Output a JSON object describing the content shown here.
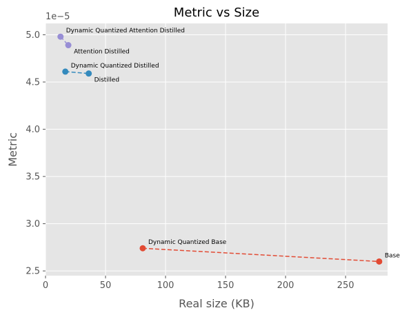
{
  "chart_data": {
    "type": "scatter",
    "title": "Metric vs Size",
    "xlabel": "Real size (KB)",
    "ylabel": "Metric",
    "y_offset_label": "1e−5",
    "xlim": [
      0,
      285
    ],
    "ylim": [
      2.45,
      5.12
    ],
    "xticks": [
      0,
      50,
      100,
      150,
      200,
      250
    ],
    "yticks": [
      2.5,
      3.0,
      3.5,
      4.0,
      4.5,
      5.0
    ],
    "xtick_labels": [
      "0",
      "50",
      "100",
      "150",
      "200",
      "250"
    ],
    "ytick_labels": [
      "2.5",
      "3.0",
      "3.5",
      "4.0",
      "4.5",
      "5.0"
    ],
    "grid": true,
    "series": [
      {
        "color": "#e24a33",
        "points": [
          {
            "x": 81,
            "y": 2.74,
            "label": "Dynamic Quantized Base",
            "label_pos": "above"
          },
          {
            "x": 278,
            "y": 2.6,
            "label": "Base",
            "label_pos": "above"
          }
        ]
      },
      {
        "color": "#348abd",
        "points": [
          {
            "x": 16.5,
            "y": 4.61,
            "label": "Dynamic Quantized Distilled",
            "label_pos": "above"
          },
          {
            "x": 36,
            "y": 4.59,
            "label": "Distilled",
            "label_pos": "below"
          }
        ]
      },
      {
        "color": "#988ed5",
        "points": [
          {
            "x": 12.5,
            "y": 4.98,
            "label": "Dynamic Quantized Attention Distilled",
            "label_pos": "above"
          },
          {
            "x": 19,
            "y": 4.89,
            "label": "Attention Distilled",
            "label_pos": "below"
          }
        ]
      }
    ]
  }
}
